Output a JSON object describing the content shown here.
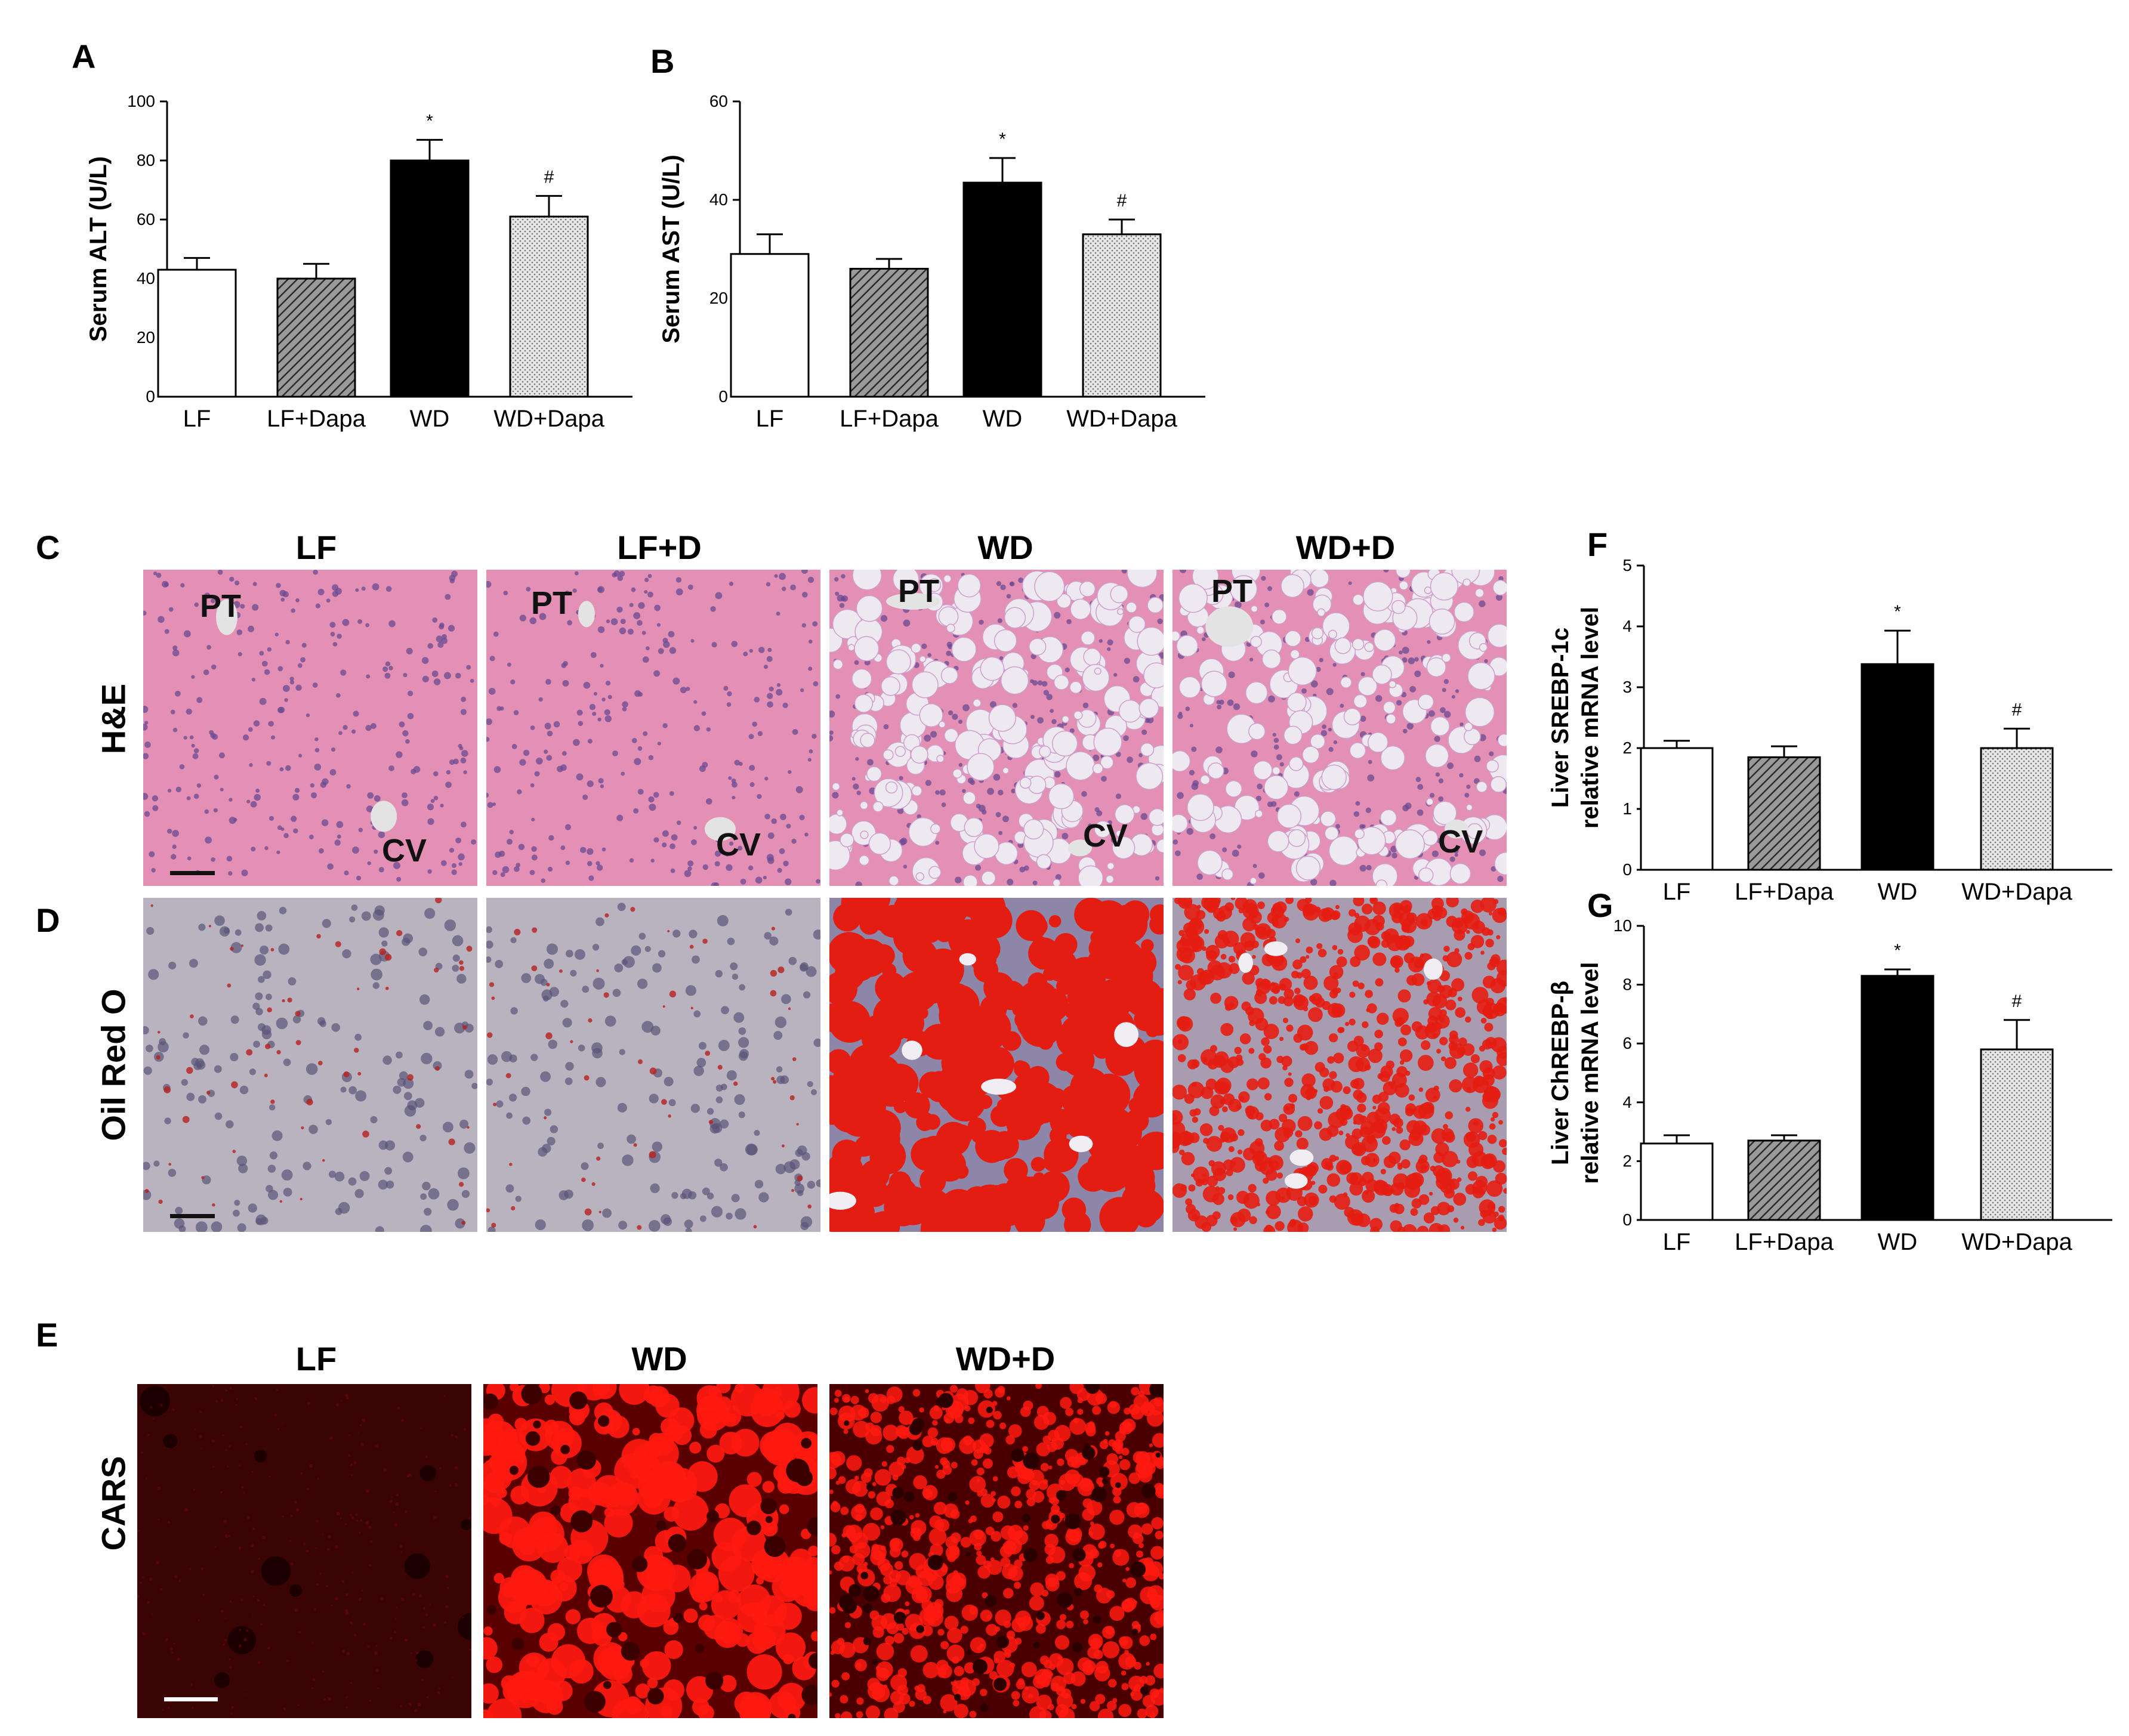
{
  "panel_labels": {
    "A": "A",
    "B": "B",
    "C": "C",
    "D": "D",
    "E": "E",
    "F": "F",
    "G": "G"
  },
  "histology": {
    "col_headers_CD": [
      "LF",
      "LF+D",
      "WD",
      "WD+D"
    ],
    "col_headers_E": [
      "LF",
      "WD",
      "WD+D"
    ],
    "row_labels": {
      "he": "H&E",
      "oil": "Oil Red O",
      "cars": "CARS"
    },
    "overlay": {
      "pt": "PT",
      "cv": "CV"
    },
    "colors": {
      "he_bg": "#e48fb4",
      "he_nuclei": "#6a4a93",
      "oil_normal": "#b9b3c0",
      "oil_red": "#e41d12",
      "cars_bg": "#3d0000",
      "cars_red": "#ff1a10"
    }
  },
  "chart_data": [
    {
      "id": "A",
      "type": "bar",
      "categories": [
        "LF",
        "LF+Dapa",
        "WD",
        "WD+Dapa"
      ],
      "values": [
        43,
        40,
        80,
        61
      ],
      "errors": [
        4,
        5,
        7,
        7
      ],
      "annotations": [
        "",
        "",
        "*",
        "#"
      ],
      "ylabel": "Serum ALT (U/L)",
      "ylim": [
        0,
        100
      ],
      "yticks": [
        0,
        20,
        40,
        60,
        80,
        100
      ],
      "fills": [
        "white",
        "diag",
        "black",
        "dots"
      ]
    },
    {
      "id": "B",
      "type": "bar",
      "categories": [
        "LF",
        "LF+Dapa",
        "WD",
        "WD+Dapa"
      ],
      "values": [
        29,
        26,
        43.5,
        33
      ],
      "errors": [
        4,
        2,
        5,
        3
      ],
      "annotations": [
        "",
        "",
        "*",
        "#"
      ],
      "ylabel": "Serum AST (U/L)",
      "ylim": [
        0,
        60
      ],
      "yticks": [
        0,
        20,
        40,
        60
      ],
      "fills": [
        "white",
        "diag",
        "black",
        "dots"
      ]
    },
    {
      "id": "F",
      "type": "bar",
      "categories": [
        "LF",
        "LF+Dapa",
        "WD",
        "WD+Dapa"
      ],
      "values": [
        2.0,
        1.85,
        3.38,
        2.0
      ],
      "errors": [
        0.12,
        0.18,
        0.55,
        0.32
      ],
      "annotations": [
        "",
        "",
        "*",
        "#"
      ],
      "ylabel": [
        "Liver SREBP-1c",
        "relative mRNA level"
      ],
      "ylim": [
        0,
        5
      ],
      "yticks": [
        0,
        1,
        2,
        3,
        4,
        5
      ],
      "fills": [
        "white",
        "diag",
        "black",
        "dots"
      ]
    },
    {
      "id": "G",
      "type": "bar",
      "categories": [
        "LF",
        "LF+Dapa",
        "WD",
        "WD+Dapa"
      ],
      "values": [
        2.6,
        2.7,
        8.3,
        5.8
      ],
      "errors": [
        0.28,
        0.18,
        0.22,
        1.0
      ],
      "annotations": [
        "",
        "",
        "*",
        "#"
      ],
      "ylabel": [
        "Liver ChREBP-β",
        "relative mRNA level"
      ],
      "ylim": [
        0,
        10
      ],
      "yticks": [
        0,
        2,
        4,
        6,
        8,
        10
      ],
      "fills": [
        "white",
        "diag",
        "black",
        "dots"
      ]
    }
  ]
}
